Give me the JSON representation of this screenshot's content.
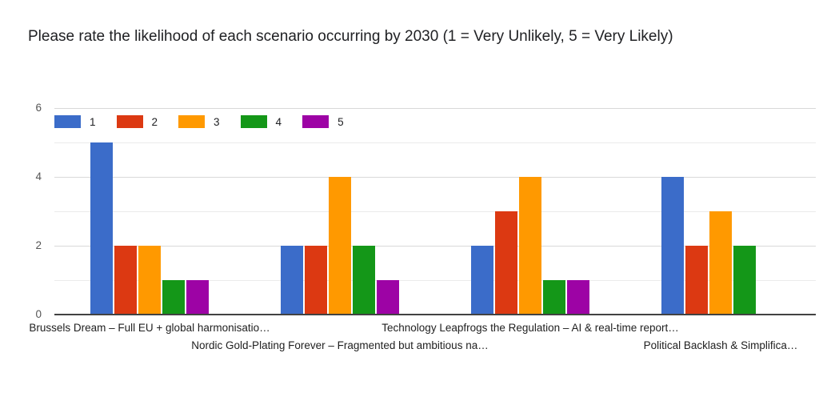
{
  "chart_data": {
    "type": "bar",
    "title": "Please rate the likelihood of each scenario occurring by 2030 (1 = Very Unlikely, 5 = Very Likely)",
    "categories": [
      "Brussels Dream – Full EU + global harmonisatio…",
      "Nordic Gold-Plating Forever – Fragmented but ambitious na…",
      "Technology Leapfrogs the Regulation – AI & real-time report…",
      "Political Backlash & Simplifica…"
    ],
    "series": [
      {
        "name": "1",
        "color": "#3B6CC9",
        "values": [
          5,
          2,
          2,
          4
        ]
      },
      {
        "name": "2",
        "color": "#DC3912",
        "values": [
          2,
          2,
          3,
          2
        ]
      },
      {
        "name": "3",
        "color": "#FF9900",
        "values": [
          2,
          4,
          4,
          3
        ]
      },
      {
        "name": "4",
        "color": "#149718",
        "values": [
          1,
          2,
          1,
          2
        ]
      },
      {
        "name": "5",
        "color": "#9D03A5",
        "values": [
          1,
          1,
          1,
          0
        ]
      }
    ],
    "xlabel": "",
    "ylabel": "",
    "ylim": [
      0,
      6
    ],
    "yticks": [
      0,
      2,
      4,
      6
    ],
    "grid": "horizontal gridlines at every integer from 1 to 6, darker baseline at 0",
    "legend_position": "top-left inside plot area",
    "x_label_layout": "staggered on two rows (1st & 3rd on upper row, 2nd & 4th on lower row)"
  }
}
